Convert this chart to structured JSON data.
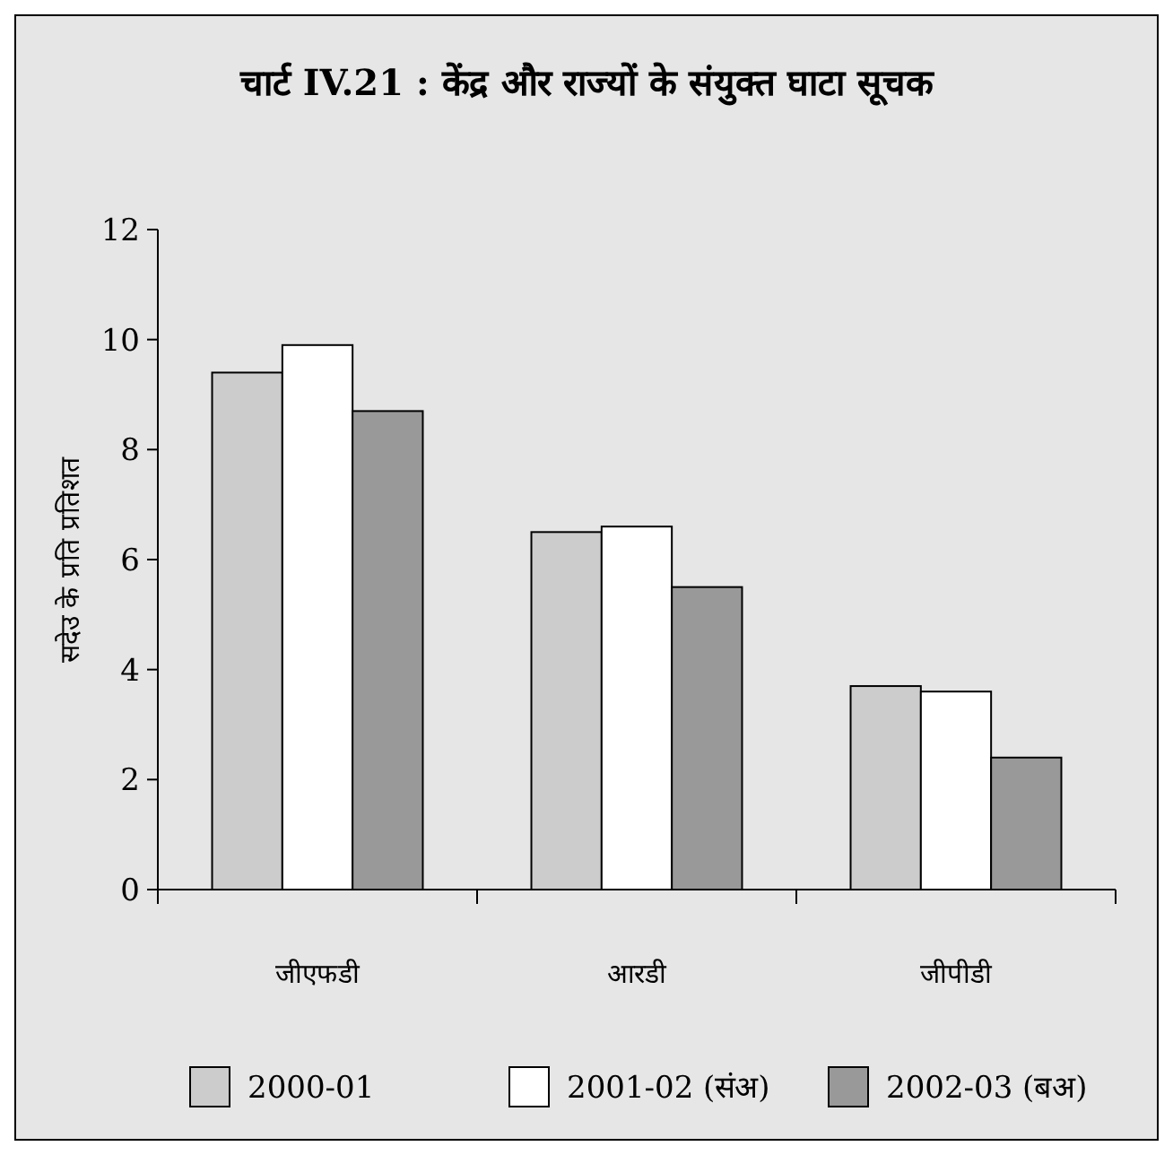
{
  "chart_data": {
    "type": "bar",
    "title": "चार्ट IV.21 : केंद्र  और राज्यों के संयुक्त घाटा सूचक",
    "ylabel": "सदेउ के प्रति  प्रतिशत",
    "categories": [
      "जीएफडी",
      "आरडी",
      "जीपीडी"
    ],
    "series": [
      {
        "name": "2000-01",
        "color": "#cccccc",
        "values": [
          9.4,
          6.5,
          3.7
        ]
      },
      {
        "name": "2001-02 (संअ)",
        "color": "#ffffff",
        "values": [
          9.9,
          6.6,
          3.6
        ]
      },
      {
        "name": "2002-03 (बअ)",
        "color": "#999999",
        "values": [
          8.7,
          5.5,
          2.4
        ]
      }
    ],
    "ylim": [
      0,
      12
    ],
    "yticks": [
      0,
      2,
      4,
      6,
      8,
      10,
      12
    ],
    "grid": false,
    "legend": "bottom"
  }
}
